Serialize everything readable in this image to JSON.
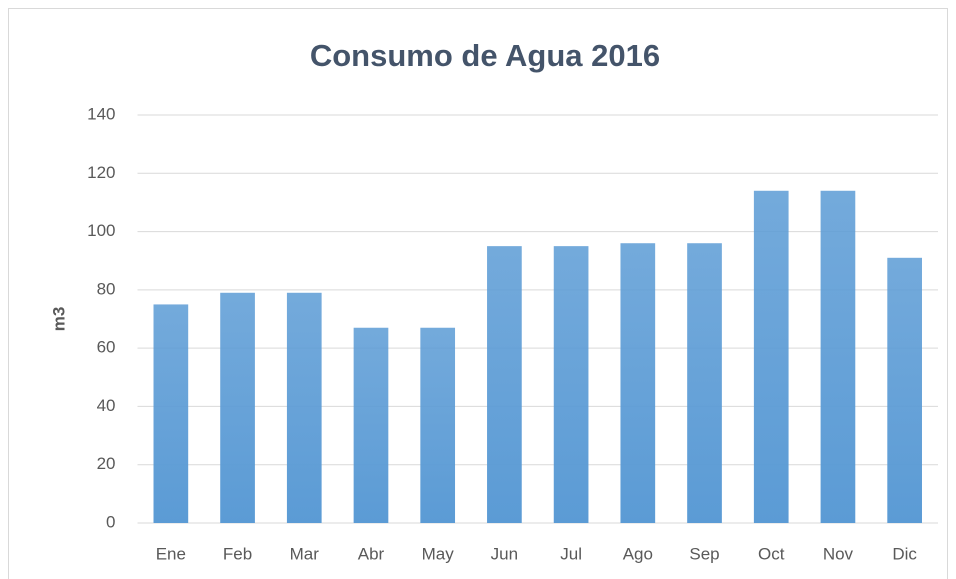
{
  "chart_data": {
    "type": "bar",
    "title": "Consumo de Agua 2016",
    "y_label": "m3",
    "categories": [
      "Ene",
      "Feb",
      "Mar",
      "Abr",
      "May",
      "Jun",
      "Jul",
      "Ago",
      "Sep",
      "Oct",
      "Nov",
      "Dic"
    ],
    "values": [
      75,
      79,
      79,
      67,
      67,
      95,
      95,
      96,
      96,
      114,
      114,
      91
    ],
    "color": "#5b9bd5",
    "ylim": [
      0,
      140
    ],
    "yticks": [
      0,
      20,
      40,
      60,
      80,
      100,
      120,
      140
    ],
    "grid": true
  }
}
